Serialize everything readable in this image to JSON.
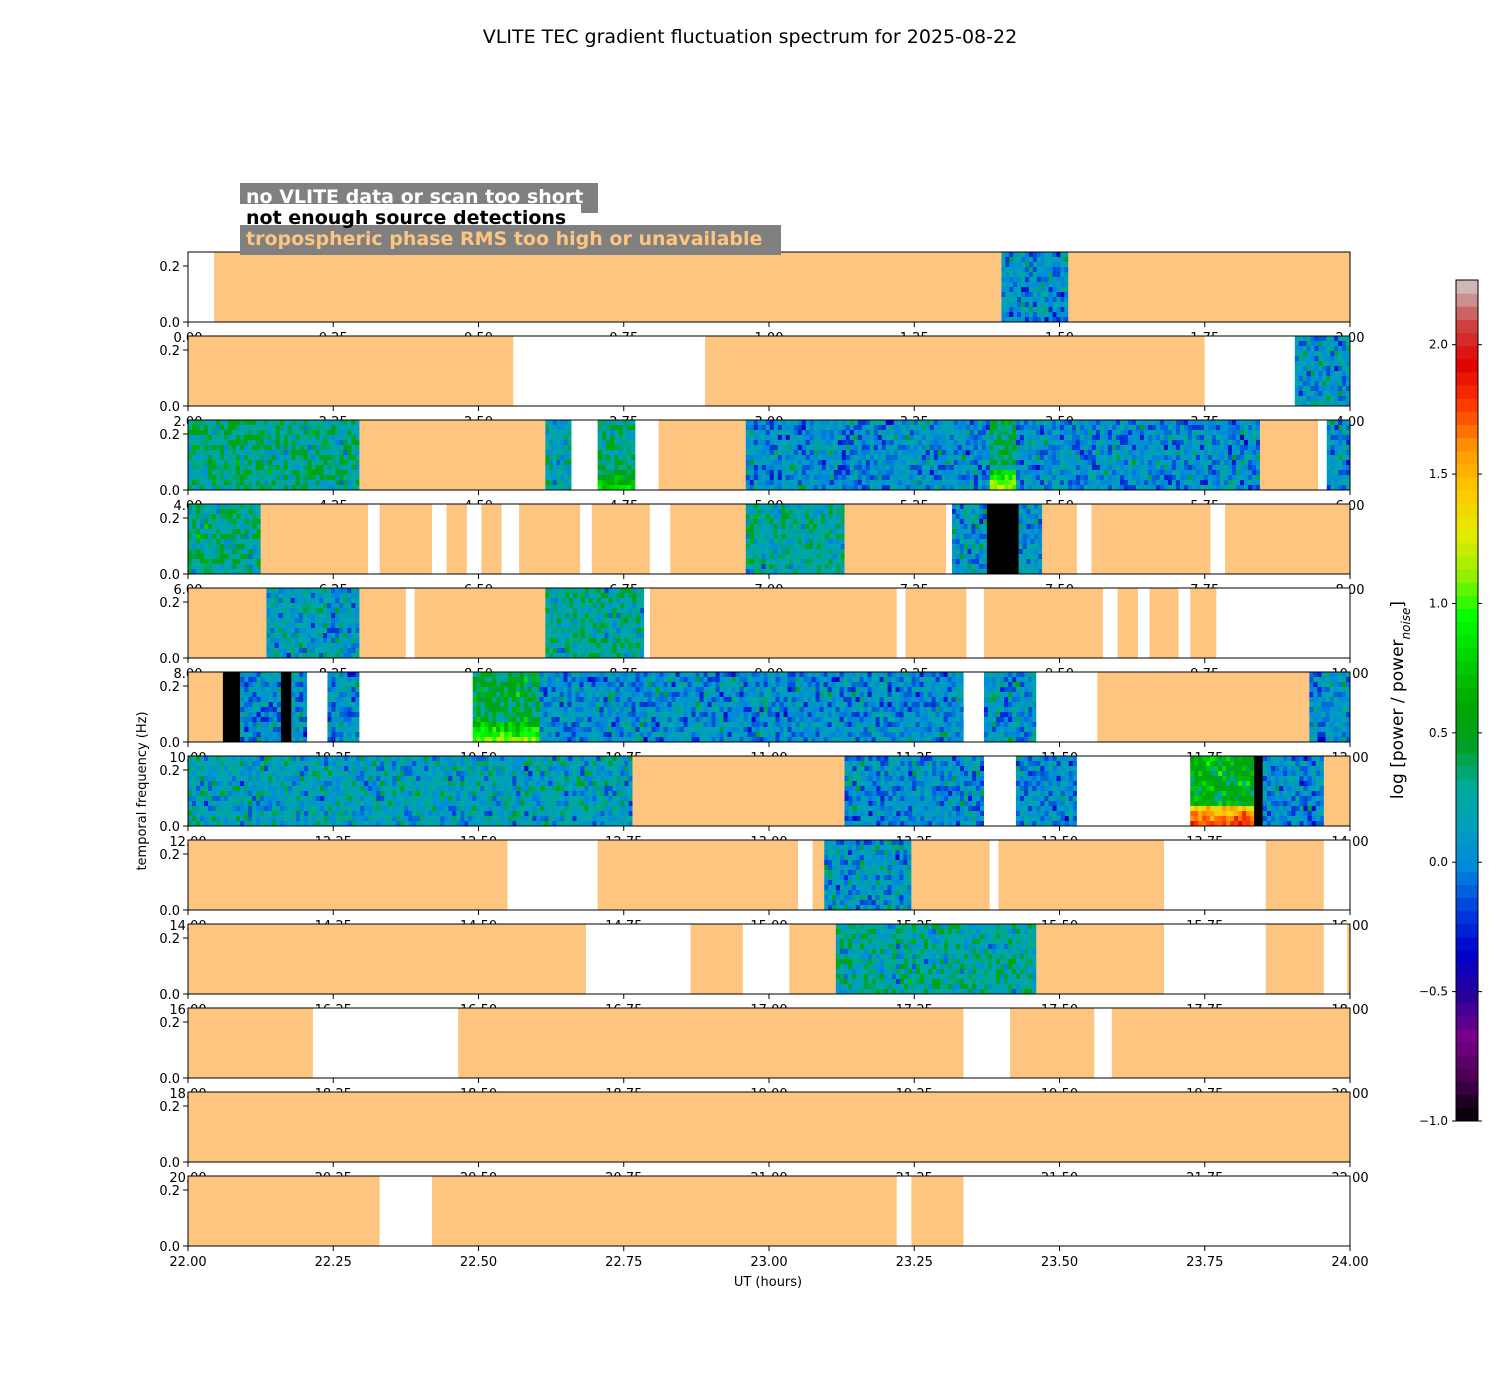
{
  "chart_data": {
    "type": "heatmap",
    "title": "VLITE TEC gradient fluctuation spectrum for 2025-08-22",
    "xlabel": "UT (hours)",
    "ylabel": "temporal frequency (Hz)",
    "ylim": [
      0,
      0.25
    ],
    "y_ticks": [
      "0.0",
      "0.2"
    ],
    "legend": {
      "position": "top-left",
      "items": [
        {
          "label": "no VLITE data or scan too short",
          "text_color": "#ffffff"
        },
        {
          "label": "not enough source detections",
          "text_color": "#000000"
        },
        {
          "label": "tropospheric phase RMS too high or unavailable",
          "text_color": "#fdc57f"
        }
      ]
    },
    "colorbar": {
      "label_main": "log [power / power",
      "label_sub": "noise",
      "label_end": "]",
      "range": [
        -1.0,
        2.25
      ],
      "ticks": [
        "−1.0",
        "−0.5",
        "0.0",
        "0.5",
        "1.0",
        "1.5",
        "2.0"
      ],
      "tick_values": [
        -1.0,
        -0.5,
        0.0,
        0.5,
        1.0,
        1.5,
        2.0
      ],
      "colormap": "nipy_spectral"
    },
    "category_colors": {
      "trop": "#fdc57f",
      "nodata": "#ffffff",
      "nodetect": "#000000"
    },
    "panels": [
      {
        "x_range": [
          0,
          2
        ],
        "x_ticks": [
          "0.00",
          "0.25",
          "0.50",
          "0.75",
          "1.00",
          "1.25",
          "1.50",
          "1.75",
          "2.00"
        ],
        "segments": [
          {
            "start": 0.0,
            "end": 0.045,
            "kind": "nodata"
          },
          {
            "start": 0.045,
            "end": 1.4,
            "kind": "trop"
          },
          {
            "start": 1.4,
            "end": 1.515,
            "kind": "spec",
            "level": 0.05
          },
          {
            "start": 1.515,
            "end": 2.0,
            "kind": "trop"
          }
        ]
      },
      {
        "x_range": [
          2,
          4
        ],
        "x_ticks": [
          "2.00",
          "2.25",
          "2.50",
          "2.75",
          "3.00",
          "3.25",
          "3.50",
          "3.75",
          "4.00"
        ],
        "segments": [
          {
            "start": 2.0,
            "end": 2.56,
            "kind": "trop"
          },
          {
            "start": 2.56,
            "end": 2.89,
            "kind": "nodata"
          },
          {
            "start": 2.89,
            "end": 3.75,
            "kind": "trop"
          },
          {
            "start": 3.75,
            "end": 3.905,
            "kind": "nodata"
          },
          {
            "start": 3.905,
            "end": 4.0,
            "kind": "spec",
            "level": 0.1
          }
        ]
      },
      {
        "x_range": [
          4,
          6
        ],
        "x_ticks": [
          "4.00",
          "4.25",
          "4.50",
          "4.75",
          "5.00",
          "5.25",
          "5.50",
          "5.75",
          "6.00"
        ],
        "segments": [
          {
            "start": 4.0,
            "end": 4.295,
            "kind": "spec",
            "level": 0.3
          },
          {
            "start": 4.295,
            "end": 4.615,
            "kind": "trop"
          },
          {
            "start": 4.615,
            "end": 4.66,
            "kind": "spec",
            "level": 0.2
          },
          {
            "start": 4.66,
            "end": 4.705,
            "kind": "nodata"
          },
          {
            "start": 4.705,
            "end": 4.77,
            "kind": "spec",
            "level": 0.3,
            "hot": 0.8
          },
          {
            "start": 4.77,
            "end": 4.81,
            "kind": "nodata"
          },
          {
            "start": 4.81,
            "end": 4.96,
            "kind": "trop"
          },
          {
            "start": 4.96,
            "end": 5.38,
            "kind": "spec",
            "level": 0.05
          },
          {
            "start": 5.38,
            "end": 5.425,
            "kind": "spec",
            "level": 0.35,
            "hot": 1.15
          },
          {
            "start": 5.425,
            "end": 5.845,
            "kind": "spec",
            "level": 0.05
          },
          {
            "start": 5.845,
            "end": 5.945,
            "kind": "trop"
          },
          {
            "start": 5.945,
            "end": 5.96,
            "kind": "nodata"
          },
          {
            "start": 5.96,
            "end": 6.0,
            "kind": "spec",
            "level": 0.05
          }
        ]
      },
      {
        "x_range": [
          6,
          8
        ],
        "x_ticks": [
          "6.00",
          "6.25",
          "6.50",
          "6.75",
          "7.00",
          "7.25",
          "7.50",
          "7.75",
          "8.00"
        ],
        "segments": [
          {
            "start": 6.0,
            "end": 6.125,
            "kind": "spec",
            "level": 0.3
          },
          {
            "start": 6.125,
            "end": 6.31,
            "kind": "trop"
          },
          {
            "start": 6.31,
            "end": 6.33,
            "kind": "nodata"
          },
          {
            "start": 6.33,
            "end": 6.42,
            "kind": "trop"
          },
          {
            "start": 6.42,
            "end": 6.445,
            "kind": "nodata"
          },
          {
            "start": 6.445,
            "end": 6.48,
            "kind": "trop"
          },
          {
            "start": 6.48,
            "end": 6.505,
            "kind": "nodata"
          },
          {
            "start": 6.505,
            "end": 6.54,
            "kind": "trop"
          },
          {
            "start": 6.54,
            "end": 6.57,
            "kind": "nodata"
          },
          {
            "start": 6.57,
            "end": 6.675,
            "kind": "trop"
          },
          {
            "start": 6.675,
            "end": 6.695,
            "kind": "nodata"
          },
          {
            "start": 6.695,
            "end": 6.795,
            "kind": "trop"
          },
          {
            "start": 6.795,
            "end": 6.83,
            "kind": "nodata"
          },
          {
            "start": 6.83,
            "end": 6.96,
            "kind": "trop"
          },
          {
            "start": 6.96,
            "end": 7.13,
            "kind": "spec",
            "level": 0.25
          },
          {
            "start": 7.13,
            "end": 7.305,
            "kind": "trop"
          },
          {
            "start": 7.305,
            "end": 7.315,
            "kind": "nodata"
          },
          {
            "start": 7.315,
            "end": 7.375,
            "kind": "spec",
            "level": 0.1
          },
          {
            "start": 7.375,
            "end": 7.43,
            "kind": "nodetect"
          },
          {
            "start": 7.43,
            "end": 7.47,
            "kind": "spec",
            "level": 0.1
          },
          {
            "start": 7.47,
            "end": 7.53,
            "kind": "trop"
          },
          {
            "start": 7.53,
            "end": 7.555,
            "kind": "nodata"
          },
          {
            "start": 7.555,
            "end": 7.76,
            "kind": "trop"
          },
          {
            "start": 7.76,
            "end": 7.785,
            "kind": "nodata"
          },
          {
            "start": 7.785,
            "end": 8.0,
            "kind": "trop"
          }
        ]
      },
      {
        "x_range": [
          8,
          10
        ],
        "x_ticks": [
          "8.00",
          "8.25",
          "8.50",
          "8.75",
          "9.00",
          "9.25",
          "9.50",
          "9.75",
          "10.00"
        ],
        "segments": [
          {
            "start": 8.0,
            "end": 8.135,
            "kind": "trop"
          },
          {
            "start": 8.135,
            "end": 8.295,
            "kind": "spec",
            "level": 0.15
          },
          {
            "start": 8.295,
            "end": 8.375,
            "kind": "trop"
          },
          {
            "start": 8.375,
            "end": 8.39,
            "kind": "nodata"
          },
          {
            "start": 8.39,
            "end": 8.615,
            "kind": "trop"
          },
          {
            "start": 8.615,
            "end": 8.785,
            "kind": "spec",
            "level": 0.25
          },
          {
            "start": 8.785,
            "end": 8.795,
            "kind": "nodata"
          },
          {
            "start": 8.795,
            "end": 9.22,
            "kind": "trop"
          },
          {
            "start": 9.22,
            "end": 9.235,
            "kind": "nodata"
          },
          {
            "start": 9.235,
            "end": 9.34,
            "kind": "trop"
          },
          {
            "start": 9.34,
            "end": 9.37,
            "kind": "nodata"
          },
          {
            "start": 9.37,
            "end": 9.575,
            "kind": "trop"
          },
          {
            "start": 9.575,
            "end": 9.6,
            "kind": "nodata"
          },
          {
            "start": 9.6,
            "end": 9.635,
            "kind": "trop"
          },
          {
            "start": 9.635,
            "end": 9.655,
            "kind": "nodata"
          },
          {
            "start": 9.655,
            "end": 9.705,
            "kind": "trop"
          },
          {
            "start": 9.705,
            "end": 9.725,
            "kind": "nodata"
          },
          {
            "start": 9.725,
            "end": 9.77,
            "kind": "trop"
          },
          {
            "start": 9.77,
            "end": 10.0,
            "kind": "nodata"
          }
        ]
      },
      {
        "x_range": [
          10,
          12
        ],
        "x_ticks": [
          "10.00",
          "10.25",
          "10.50",
          "10.75",
          "11.00",
          "11.25",
          "11.50",
          "11.75",
          "12.00"
        ],
        "segments": [
          {
            "start": 10.0,
            "end": 10.06,
            "kind": "trop"
          },
          {
            "start": 10.06,
            "end": 10.09,
            "kind": "nodetect"
          },
          {
            "start": 10.09,
            "end": 10.16,
            "kind": "spec",
            "level": 0.05
          },
          {
            "start": 10.16,
            "end": 10.178,
            "kind": "nodetect"
          },
          {
            "start": 10.178,
            "end": 10.205,
            "kind": "spec",
            "level": 0.05
          },
          {
            "start": 10.205,
            "end": 10.24,
            "kind": "nodata"
          },
          {
            "start": 10.24,
            "end": 10.295,
            "kind": "spec",
            "level": 0.05
          },
          {
            "start": 10.295,
            "end": 10.49,
            "kind": "nodata"
          },
          {
            "start": 10.49,
            "end": 10.605,
            "kind": "spec",
            "level": 0.45,
            "hot": 1.1
          },
          {
            "start": 10.605,
            "end": 11.335,
            "kind": "spec",
            "level": 0.05
          },
          {
            "start": 11.335,
            "end": 11.37,
            "kind": "nodata"
          },
          {
            "start": 11.37,
            "end": 11.46,
            "kind": "spec",
            "level": 0.1
          },
          {
            "start": 11.46,
            "end": 11.565,
            "kind": "nodata"
          },
          {
            "start": 11.565,
            "end": 11.93,
            "kind": "trop"
          },
          {
            "start": 11.93,
            "end": 12.0,
            "kind": "spec",
            "level": 0.05
          }
        ]
      },
      {
        "x_range": [
          12,
          14
        ],
        "x_ticks": [
          "12.00",
          "12.25",
          "12.50",
          "12.75",
          "13.00",
          "13.25",
          "13.50",
          "13.75",
          "14.00"
        ],
        "segments": [
          {
            "start": 12.0,
            "end": 12.765,
            "kind": "spec",
            "level": 0.15
          },
          {
            "start": 12.765,
            "end": 13.13,
            "kind": "trop"
          },
          {
            "start": 13.13,
            "end": 13.37,
            "kind": "spec",
            "level": 0.05
          },
          {
            "start": 13.37,
            "end": 13.425,
            "kind": "nodata"
          },
          {
            "start": 13.425,
            "end": 13.53,
            "kind": "spec",
            "level": 0.05
          },
          {
            "start": 13.53,
            "end": 13.725,
            "kind": "nodata"
          },
          {
            "start": 13.725,
            "end": 13.835,
            "kind": "spec",
            "level": 0.6,
            "hot": 1.8
          },
          {
            "start": 13.835,
            "end": 13.85,
            "kind": "nodetect"
          },
          {
            "start": 13.85,
            "end": 13.955,
            "kind": "spec",
            "level": 0.0
          },
          {
            "start": 13.955,
            "end": 14.0,
            "kind": "trop"
          }
        ]
      },
      {
        "x_range": [
          14,
          16
        ],
        "x_ticks": [
          "14.00",
          "14.25",
          "14.50",
          "14.75",
          "15.00",
          "15.25",
          "15.50",
          "15.75",
          "16.00"
        ],
        "segments": [
          {
            "start": 14.0,
            "end": 14.55,
            "kind": "trop"
          },
          {
            "start": 14.55,
            "end": 14.705,
            "kind": "nodata"
          },
          {
            "start": 14.705,
            "end": 15.05,
            "kind": "trop"
          },
          {
            "start": 15.05,
            "end": 15.075,
            "kind": "nodata"
          },
          {
            "start": 15.075,
            "end": 15.095,
            "kind": "trop"
          },
          {
            "start": 15.095,
            "end": 15.245,
            "kind": "spec",
            "level": 0.1
          },
          {
            "start": 15.245,
            "end": 15.38,
            "kind": "trop"
          },
          {
            "start": 15.38,
            "end": 15.395,
            "kind": "nodata"
          },
          {
            "start": 15.395,
            "end": 15.68,
            "kind": "trop"
          },
          {
            "start": 15.68,
            "end": 15.855,
            "kind": "nodata"
          },
          {
            "start": 15.855,
            "end": 15.955,
            "kind": "trop"
          },
          {
            "start": 15.955,
            "end": 16.0,
            "kind": "nodata"
          }
        ]
      },
      {
        "x_range": [
          16,
          18
        ],
        "x_ticks": [
          "16.00",
          "16.25",
          "16.50",
          "16.75",
          "17.00",
          "17.25",
          "17.50",
          "17.75",
          "18.00"
        ],
        "segments": [
          {
            "start": 16.0,
            "end": 16.685,
            "kind": "trop"
          },
          {
            "start": 16.685,
            "end": 16.865,
            "kind": "nodata"
          },
          {
            "start": 16.865,
            "end": 16.955,
            "kind": "trop"
          },
          {
            "start": 16.955,
            "end": 17.035,
            "kind": "nodata"
          },
          {
            "start": 17.035,
            "end": 17.115,
            "kind": "trop"
          },
          {
            "start": 17.115,
            "end": 17.46,
            "kind": "spec",
            "level": 0.25
          },
          {
            "start": 17.46,
            "end": 17.68,
            "kind": "trop"
          },
          {
            "start": 17.68,
            "end": 17.855,
            "kind": "nodata"
          },
          {
            "start": 17.855,
            "end": 17.955,
            "kind": "trop"
          },
          {
            "start": 17.955,
            "end": 17.995,
            "kind": "nodata"
          },
          {
            "start": 17.995,
            "end": 18.0,
            "kind": "trop"
          }
        ]
      },
      {
        "x_range": [
          18,
          20
        ],
        "x_ticks": [
          "18.00",
          "18.25",
          "18.50",
          "18.75",
          "19.00",
          "19.25",
          "19.50",
          "19.75",
          "20.00"
        ],
        "segments": [
          {
            "start": 18.0,
            "end": 18.215,
            "kind": "trop"
          },
          {
            "start": 18.215,
            "end": 18.465,
            "kind": "nodata"
          },
          {
            "start": 18.465,
            "end": 19.335,
            "kind": "trop"
          },
          {
            "start": 19.335,
            "end": 19.415,
            "kind": "nodata"
          },
          {
            "start": 19.415,
            "end": 19.56,
            "kind": "trop"
          },
          {
            "start": 19.56,
            "end": 19.59,
            "kind": "nodata"
          },
          {
            "start": 19.59,
            "end": 20.0,
            "kind": "trop"
          }
        ]
      },
      {
        "x_range": [
          20,
          22
        ],
        "x_ticks": [
          "20.00",
          "20.25",
          "20.50",
          "20.75",
          "21.00",
          "21.25",
          "21.50",
          "21.75",
          "22.00"
        ],
        "segments": [
          {
            "start": 20.0,
            "end": 22.0,
            "kind": "trop"
          }
        ]
      },
      {
        "x_range": [
          22,
          24
        ],
        "x_ticks": [
          "22.00",
          "22.25",
          "22.50",
          "22.75",
          "23.00",
          "23.25",
          "23.50",
          "23.75",
          "24.00"
        ],
        "segments": [
          {
            "start": 22.0,
            "end": 22.33,
            "kind": "trop"
          },
          {
            "start": 22.33,
            "end": 22.42,
            "kind": "nodata"
          },
          {
            "start": 22.42,
            "end": 23.22,
            "kind": "trop"
          },
          {
            "start": 23.22,
            "end": 23.245,
            "kind": "nodata"
          },
          {
            "start": 23.245,
            "end": 23.335,
            "kind": "trop"
          },
          {
            "start": 23.335,
            "end": 24.0,
            "kind": "nodata"
          }
        ]
      }
    ]
  }
}
